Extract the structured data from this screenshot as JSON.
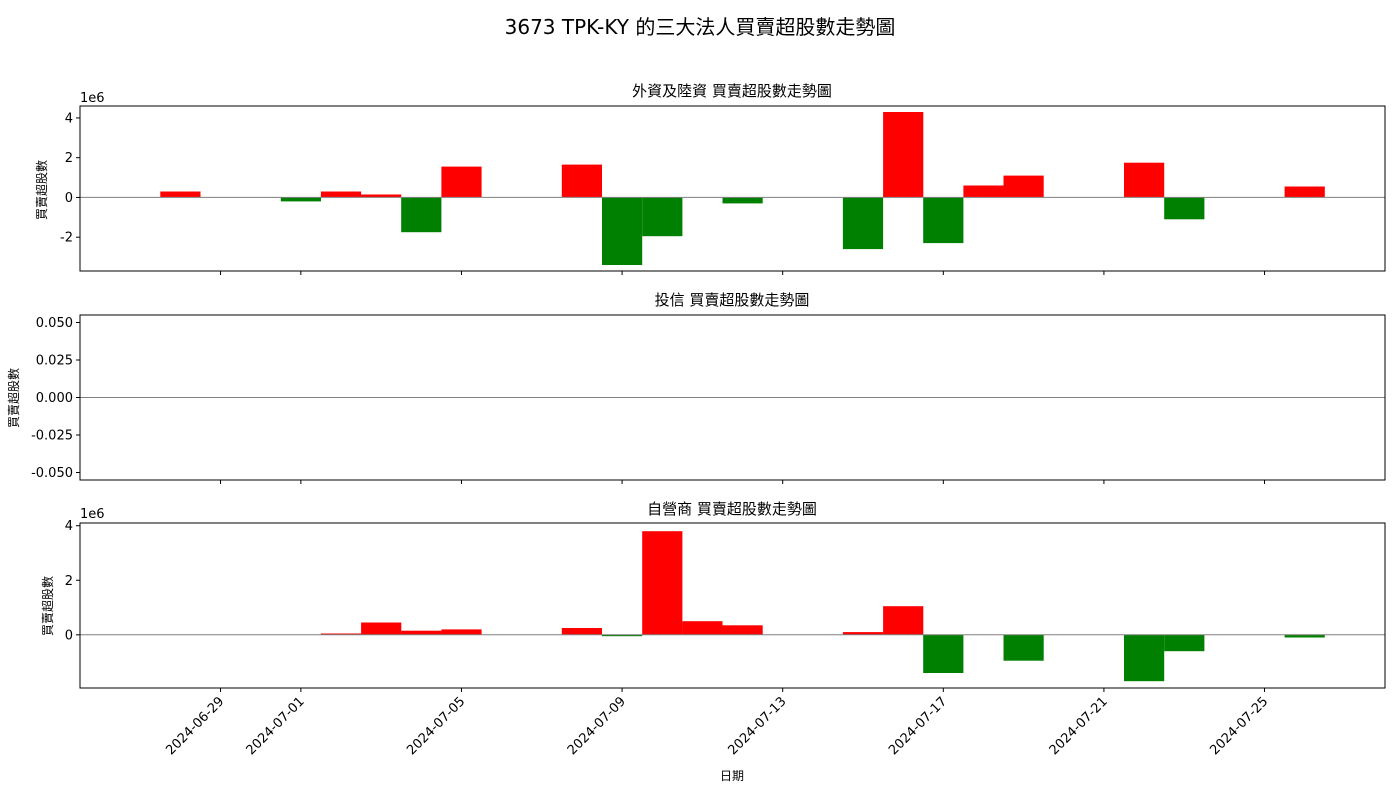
{
  "figure": {
    "title": "3673 TPK-KY         的三大法人買賣超股數走勢圖",
    "xlabel": "日期",
    "colors": {
      "buy": "#ff0000",
      "sell": "#008000",
      "zero_line": "#808080"
    }
  },
  "chart_data": [
    {
      "type": "bar",
      "title": "外資及陸資 買賣超股數走勢圖",
      "ylabel": "買賣超股數",
      "offset_text": "1e6",
      "ylim": [
        -3.7,
        4.6
      ],
      "yticks": [
        -2,
        0,
        2,
        4
      ],
      "ytick_labels": [
        "-2",
        "0",
        "2",
        "4"
      ],
      "x": [
        "2024-06-28",
        "2024-07-01",
        "2024-07-02",
        "2024-07-03",
        "2024-07-04",
        "2024-07-05",
        "2024-07-08",
        "2024-07-09",
        "2024-07-10",
        "2024-07-12",
        "2024-07-15",
        "2024-07-16",
        "2024-07-17",
        "2024-07-18",
        "2024-07-19",
        "2024-07-22",
        "2024-07-23",
        "2024-07-26"
      ],
      "values": [
        0.3,
        -0.2,
        0.3,
        0.15,
        -1.75,
        1.55,
        1.65,
        -3.4,
        -1.95,
        -0.3,
        -2.6,
        4.3,
        -2.3,
        0.6,
        1.1,
        1.75,
        -1.1,
        0.55
      ]
    },
    {
      "type": "bar",
      "title": "投信 買賣超股數走勢圖",
      "ylabel": "買賣超股數",
      "offset_text": "",
      "ylim": [
        -0.055,
        0.055
      ],
      "yticks": [
        -0.05,
        -0.025,
        0,
        0.025,
        0.05
      ],
      "ytick_labels": [
        "-0.050",
        "-0.025",
        "0.000",
        "0.025",
        "0.050"
      ],
      "x": [],
      "values": []
    },
    {
      "type": "bar",
      "title": "自營商 買賣超股數走勢圖",
      "ylabel": "買賣超股數",
      "offset_text": "1e6",
      "ylim": [
        -1.95,
        4.1
      ],
      "yticks": [
        0,
        2,
        4
      ],
      "ytick_labels": [
        "0",
        "2",
        "4"
      ],
      "x": [
        "2024-07-02",
        "2024-07-03",
        "2024-07-04",
        "2024-07-05",
        "2024-07-08",
        "2024-07-09",
        "2024-07-10",
        "2024-07-11",
        "2024-07-12",
        "2024-07-15",
        "2024-07-16",
        "2024-07-17",
        "2024-07-19",
        "2024-07-22",
        "2024-07-23",
        "2024-07-26"
      ],
      "values": [
        0.05,
        0.45,
        0.15,
        0.2,
        0.25,
        -0.05,
        3.8,
        0.5,
        0.35,
        0.1,
        1.05,
        -1.4,
        -0.95,
        -1.7,
        -0.6,
        -0.1
      ]
    }
  ],
  "x_axis": {
    "xlim": [
      "2024-06-25T12:00",
      "2024-07-28T00:00"
    ],
    "ticks": [
      "2024-06-29",
      "2024-07-01",
      "2024-07-05",
      "2024-07-09",
      "2024-07-13",
      "2024-07-17",
      "2024-07-21",
      "2024-07-25"
    ]
  }
}
